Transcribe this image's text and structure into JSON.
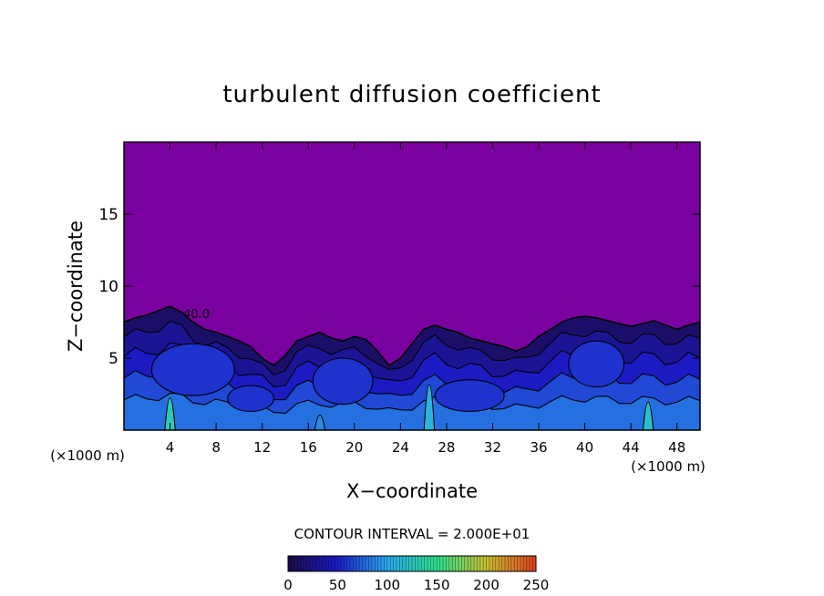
{
  "chart_data": {
    "type": "heatmap",
    "title": "turbulent diffusion coefficient",
    "xlabel": "X−coordinate",
    "ylabel": "Z−coordinate",
    "x_unit_left": "(×1000 m)",
    "x_unit_right": "(×1000 m)",
    "xlim": [
      0,
      50
    ],
    "ylim": [
      0,
      20
    ],
    "xticks": [
      4,
      8,
      12,
      16,
      20,
      24,
      28,
      32,
      36,
      40,
      44,
      48
    ],
    "yticks": [
      5,
      10,
      15
    ],
    "contour_interval_text": "CONTOUR INTERVAL = 2.000E+01",
    "contour_label": "40.0",
    "colorbar": {
      "range": [
        0,
        250
      ],
      "ticks": [
        0,
        50,
        100,
        150,
        200,
        250
      ],
      "colors": [
        "#1a0a4a",
        "#1c1cc8",
        "#2aa8f0",
        "#2ee08c",
        "#c8c030",
        "#e04020"
      ]
    },
    "background_color": "#7a00a0",
    "turbulent_layer_top": [
      [
        0,
        7.5
      ],
      [
        1,
        7.8
      ],
      [
        2,
        8.0
      ],
      [
        3,
        8.3
      ],
      [
        4,
        8.6
      ],
      [
        5,
        8.2
      ],
      [
        6,
        7.5
      ],
      [
        7,
        7.0
      ],
      [
        8,
        6.8
      ],
      [
        9,
        6.5
      ],
      [
        10,
        6.2
      ],
      [
        11,
        5.8
      ],
      [
        12,
        5.0
      ],
      [
        13,
        4.5
      ],
      [
        14,
        5.2
      ],
      [
        15,
        6.2
      ],
      [
        16,
        6.5
      ],
      [
        17,
        6.8
      ],
      [
        18,
        6.4
      ],
      [
        19,
        6.2
      ],
      [
        20,
        6.5
      ],
      [
        21,
        6.3
      ],
      [
        22,
        5.5
      ],
      [
        23,
        4.5
      ],
      [
        24,
        5.0
      ],
      [
        25,
        6.0
      ],
      [
        26,
        7.0
      ],
      [
        27,
        7.3
      ],
      [
        28,
        7.0
      ],
      [
        29,
        6.8
      ],
      [
        30,
        6.4
      ],
      [
        31,
        6.2
      ],
      [
        32,
        6.0
      ],
      [
        33,
        5.8
      ],
      [
        34,
        5.5
      ],
      [
        35,
        5.8
      ],
      [
        36,
        6.5
      ],
      [
        37,
        7.0
      ],
      [
        38,
        7.5
      ],
      [
        39,
        7.8
      ],
      [
        40,
        7.9
      ],
      [
        41,
        7.8
      ],
      [
        42,
        7.6
      ],
      [
        43,
        7.4
      ],
      [
        44,
        7.2
      ],
      [
        45,
        7.4
      ],
      [
        46,
        7.6
      ],
      [
        47,
        7.3
      ],
      [
        48,
        7.0
      ],
      [
        49,
        7.3
      ],
      [
        50,
        7.5
      ]
    ],
    "high_value_cores": [
      {
        "x": 4,
        "z_top": 3.2,
        "value": 130
      },
      {
        "x": 26.5,
        "z_top": 4.5,
        "value": 110
      },
      {
        "x": 45.5,
        "z_top": 2.8,
        "value": 120
      },
      {
        "x": 17,
        "z_top": 1.5,
        "value": 90
      }
    ]
  }
}
